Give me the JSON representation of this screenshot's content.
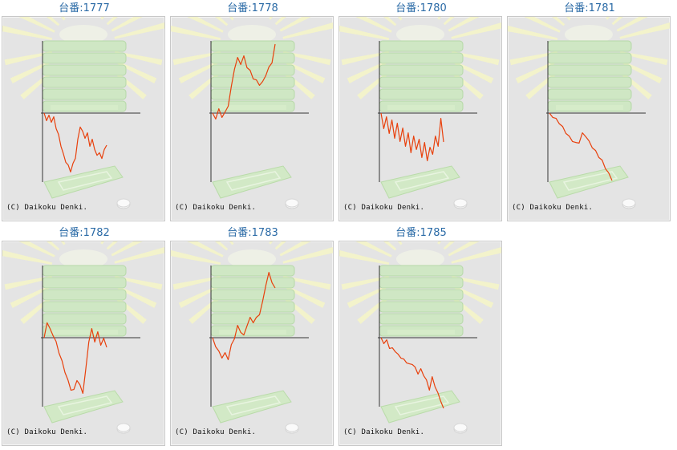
{
  "machines": [
    {
      "title": "台番:1777",
      "trace": [
        0,
        8,
        4,
        10,
        6,
        18,
        28,
        40,
        52,
        60,
        66,
        72,
        64,
        55,
        34,
        16,
        24,
        30,
        26,
        40,
        34,
        44,
        54,
        48,
        58,
        44,
        40
      ]
    },
    {
      "title": "台番:1778",
      "trace": [
        0,
        6,
        -4,
        4,
        0,
        -10,
        -32,
        -56,
        -68,
        -62,
        -70,
        -58,
        -52,
        -44,
        -40,
        -36,
        -38,
        -48,
        -56,
        -64,
        -86
      ]
    },
    {
      "title": "台番:1780",
      "trace": [
        0,
        18,
        6,
        24,
        10,
        30,
        14,
        34,
        20,
        40,
        26,
        48,
        30,
        44,
        34,
        54,
        38,
        58,
        44,
        50,
        30,
        40,
        8,
        36
      ]
    },
    {
      "title": "台番:1781",
      "trace": [
        0,
        4,
        8,
        12,
        18,
        24,
        30,
        34,
        38,
        36,
        26,
        28,
        36,
        42,
        48,
        54,
        60,
        68,
        76,
        84
      ]
    },
    {
      "title": "台番:1782",
      "trace": [
        0,
        -20,
        -10,
        -4,
        6,
        18,
        30,
        42,
        54,
        64,
        66,
        52,
        60,
        68,
        40,
        4,
        -10,
        4,
        -6,
        8,
        2,
        12
      ]
    },
    {
      "title": "台番:1783",
      "trace": [
        0,
        10,
        18,
        24,
        20,
        26,
        10,
        0,
        -14,
        -8,
        -2,
        -16,
        -24,
        -20,
        -24,
        -30,
        -44,
        -66,
        -80,
        -70,
        -62
      ]
    },
    {
      "title": "台番:1785",
      "trace": [
        0,
        6,
        4,
        12,
        14,
        16,
        22,
        24,
        28,
        30,
        34,
        32,
        38,
        44,
        40,
        46,
        54,
        64,
        50,
        60,
        70,
        78,
        88
      ]
    }
  ],
  "copyright": "(C) Daikoku Denki.",
  "colors": {
    "trace": "#e8400c",
    "axis": "#333333",
    "title": "#2a6aa6",
    "panel": "#e4e4e4"
  }
}
